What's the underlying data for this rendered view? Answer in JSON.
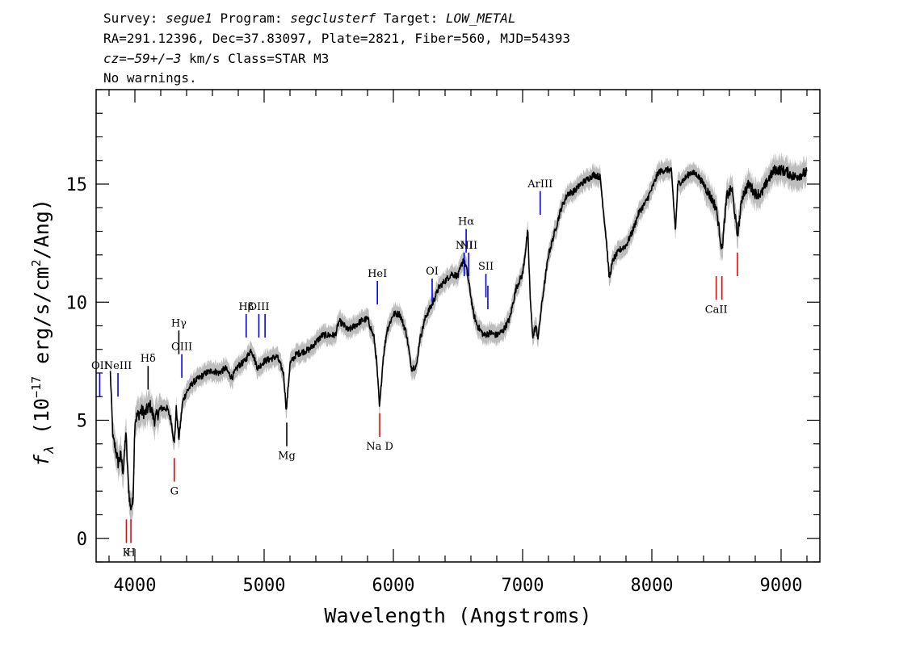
{
  "header": {
    "line1": {
      "survey_label": "Survey: ",
      "survey": "segue1",
      "program_label": " Program: ",
      "program": "segclusterf",
      "target_label": " Target: ",
      "target": "LOW_METAL"
    },
    "line2": "RA=291.12396, Dec=37.83097, Plate=2821, Fiber=560, MJD=54393",
    "line3": {
      "cz_label": "cz",
      "cz_eq": "=",
      "cz_value": "−59+/−3",
      "rest": " km/s Class=STAR M3"
    },
    "line4": "No warnings."
  },
  "chart_data": {
    "type": "line",
    "xlabel": "Wavelength (Angstroms)",
    "ylabel_parts": [
      "f",
      "λ",
      " (10",
      "−17",
      " erg/s/cm",
      "2",
      "/Ang)"
    ],
    "xlim": [
      3700,
      9300
    ],
    "ylim": [
      -1,
      19
    ],
    "x_ticks": [
      4000,
      5000,
      6000,
      7000,
      8000,
      9000
    ],
    "x_tick_labels": [
      "4000",
      "5000",
      "6000",
      "7000",
      "8000",
      "9000"
    ],
    "y_ticks": [
      0,
      5,
      10,
      15
    ],
    "y_tick_labels": [
      "0",
      "5",
      "10",
      "15"
    ],
    "x_minor_step": 200,
    "y_minor_step": 1,
    "colors": {
      "spectrum": "#000000",
      "error_band": "#bdbdbd",
      "emission": "#0000ff",
      "absorption": "#ff0000",
      "neutral": "#000000"
    },
    "spectrum": {
      "x": [
        3810,
        3830,
        3850,
        3870,
        3890,
        3910,
        3930,
        3950,
        3965,
        3985,
        4000,
        4020,
        4050,
        4080,
        4100,
        4120,
        4150,
        4200,
        4250,
        4280,
        4305,
        4320,
        4340,
        4370,
        4400,
        4450,
        4500,
        4550,
        4600,
        4650,
        4700,
        4750,
        4800,
        4850,
        4900,
        4950,
        5000,
        5050,
        5100,
        5150,
        5172,
        5200,
        5250,
        5300,
        5350,
        5400,
        5450,
        5500,
        5550,
        5580,
        5620,
        5650,
        5700,
        5750,
        5800,
        5850,
        5870,
        5893,
        5920,
        5950,
        6000,
        6050,
        6100,
        6140,
        6180,
        6200,
        6250,
        6300,
        6350,
        6400,
        6450,
        6500,
        6540,
        6563,
        6590,
        6620,
        6650,
        6700,
        6750,
        6800,
        6850,
        6900,
        6950,
        7000,
        7040,
        7060,
        7080,
        7100,
        7120,
        7150,
        7200,
        7250,
        7300,
        7350,
        7400,
        7450,
        7500,
        7550,
        7600,
        7650,
        7670,
        7700,
        7750,
        7800,
        7850,
        7900,
        7950,
        8000,
        8050,
        8100,
        8150,
        8183,
        8200,
        8250,
        8300,
        8350,
        8400,
        8450,
        8498,
        8542,
        8580,
        8620,
        8662,
        8700,
        8750,
        8800,
        8850,
        8900,
        8950,
        9000,
        9050,
        9100,
        9150,
        9200
      ],
      "y": [
        7.0,
        4.2,
        3.8,
        3.2,
        3.5,
        2.8,
        4.5,
        2.2,
        1.3,
        1.5,
        5.0,
        5.2,
        5.4,
        5.3,
        5.5,
        5.6,
        5.0,
        5.5,
        5.5,
        5.0,
        4.0,
        5.5,
        4.2,
        5.8,
        6.2,
        6.6,
        6.8,
        7.0,
        7.1,
        7.0,
        7.2,
        6.8,
        7.3,
        7.5,
        8.0,
        7.2,
        7.5,
        7.6,
        7.7,
        7.0,
        5.4,
        7.4,
        7.8,
        7.9,
        8.0,
        8.3,
        8.6,
        8.6,
        8.6,
        9.2,
        9.0,
        8.8,
        9.0,
        9.2,
        9.3,
        8.5,
        7.5,
        5.5,
        7.6,
        8.8,
        9.5,
        9.5,
        8.7,
        7.2,
        7.3,
        8.3,
        9.4,
        9.9,
        10.6,
        10.9,
        11.2,
        11.1,
        11.8,
        11.5,
        10.6,
        9.5,
        9.0,
        8.6,
        8.7,
        8.6,
        8.8,
        9.3,
        10.6,
        11.2,
        13.0,
        10.0,
        8.5,
        9.0,
        8.5,
        10.0,
        12.0,
        13.0,
        14.0,
        14.6,
        14.7,
        15.0,
        15.2,
        15.4,
        15.3,
        12.5,
        11.0,
        11.8,
        12.2,
        12.4,
        13.0,
        13.8,
        14.2,
        14.8,
        15.5,
        15.6,
        15.6,
        13.0,
        15.0,
        15.2,
        15.5,
        15.4,
        15.0,
        14.5,
        14.0,
        12.2,
        14.5,
        14.8,
        12.8,
        14.5,
        15.0,
        14.6,
        14.6,
        15.2,
        15.6,
        15.6,
        15.5,
        15.3,
        15.4,
        15.5
      ]
    },
    "lines": [
      {
        "label": "OII",
        "x": 3728,
        "type": "emission",
        "y_top": 7.0,
        "y_bottom": 6.0,
        "label_side": "above"
      },
      {
        "label": "NeIII",
        "x": 3869,
        "type": "emission",
        "y_top": 7.0,
        "y_bottom": 6.0,
        "label_side": "above"
      },
      {
        "label": "Hδ",
        "x": 4102,
        "type": "neutral",
        "y_top": 7.3,
        "y_bottom": 6.3,
        "label_side": "above"
      },
      {
        "label": "Hγ",
        "x": 4340,
        "type": "neutral",
        "y_top": 8.8,
        "y_bottom": 7.8,
        "label_side": "above"
      },
      {
        "label": "OIII",
        "x": 4363,
        "type": "emission",
        "y_top": 7.8,
        "y_bottom": 6.8,
        "label_side": "above"
      },
      {
        "label": "Hβ",
        "x": 4861,
        "type": "emission",
        "y_top": 9.5,
        "y_bottom": 8.5,
        "label_side": "above"
      },
      {
        "label": "OIII",
        "x": 4959,
        "type": "emission",
        "y_top": 9.5,
        "y_bottom": 8.5,
        "label_side": "above"
      },
      {
        "label": "",
        "x": 5007,
        "type": "emission",
        "y_top": 9.5,
        "y_bottom": 8.5,
        "label_side": "above"
      },
      {
        "label": "HeI",
        "x": 5876,
        "type": "emission",
        "y_top": 10.9,
        "y_bottom": 9.9,
        "label_side": "above"
      },
      {
        "label": "OI",
        "x": 6300,
        "type": "emission",
        "y_top": 11.0,
        "y_bottom": 10.0,
        "label_side": "above"
      },
      {
        "label": "NII",
        "x": 6548,
        "type": "emission",
        "y_top": 12.1,
        "y_bottom": 11.1,
        "label_side": "above"
      },
      {
        "label": "Hα",
        "x": 6563,
        "type": "emission",
        "y_top": 13.1,
        "y_bottom": 12.1,
        "label_side": "above"
      },
      {
        "label": "NII",
        "x": 6583,
        "type": "emission",
        "y_top": 12.1,
        "y_bottom": 11.1,
        "label_side": "above"
      },
      {
        "label": "SII",
        "x": 6716,
        "type": "emission",
        "y_top": 11.2,
        "y_bottom": 10.2,
        "label_side": "above"
      },
      {
        "label": "",
        "x": 6731,
        "type": "emission",
        "y_top": 10.7,
        "y_bottom": 9.7,
        "label_side": "above"
      },
      {
        "label": "ArIII",
        "x": 7136,
        "type": "emission",
        "y_top": 14.7,
        "y_bottom": 13.7,
        "label_side": "above"
      },
      {
        "label": "K",
        "x": 3934,
        "type": "absorption",
        "y_top": 0.8,
        "y_bottom": -0.2,
        "label_side": "below"
      },
      {
        "label": "H",
        "x": 3969,
        "type": "absorption",
        "y_top": 0.8,
        "y_bottom": -0.2,
        "label_side": "below"
      },
      {
        "label": "G",
        "x": 4305,
        "type": "absorption",
        "y_top": 3.4,
        "y_bottom": 2.4,
        "label_side": "below"
      },
      {
        "label": "Mg",
        "x": 5175,
        "type": "neutral",
        "y_top": 4.9,
        "y_bottom": 3.9,
        "label_side": "below"
      },
      {
        "label": "Na D",
        "x": 5894,
        "type": "absorption",
        "y_top": 5.3,
        "y_bottom": 4.3,
        "label_side": "below"
      },
      {
        "label": "CaII",
        "x": 8498,
        "type": "absorption",
        "y_top": 11.1,
        "y_bottom": 10.1,
        "label_side": "below"
      },
      {
        "label": "",
        "x": 8542,
        "type": "absorption",
        "y_top": 11.1,
        "y_bottom": 10.1,
        "label_side": "below"
      },
      {
        "label": "",
        "x": 8662,
        "type": "absorption",
        "y_top": 12.1,
        "y_bottom": 11.1,
        "label_side": "below"
      }
    ]
  }
}
